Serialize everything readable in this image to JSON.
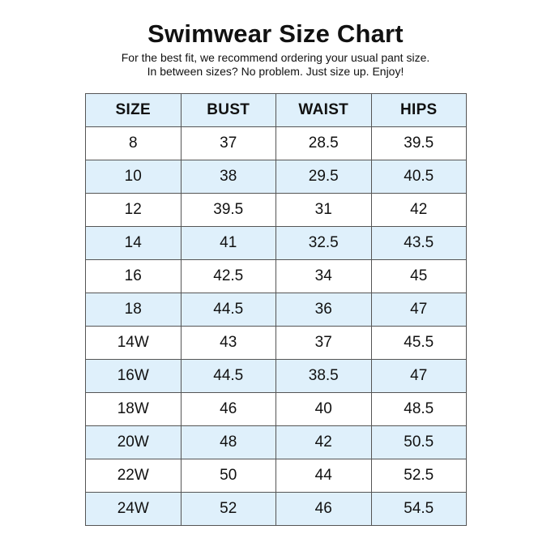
{
  "title": "Swimwear Size Chart",
  "subtitle": {
    "line1": "For the best fit, we recommend ordering your usual pant size.",
    "line2": "In between sizes? No problem. Just size up. Enjoy!"
  },
  "colors": {
    "shaded_row": "#dff0fb",
    "border": "#555555",
    "text": "#111111"
  },
  "table": {
    "headers": [
      "SIZE",
      "BUST",
      "WAIST",
      "HIPS"
    ],
    "rows": [
      [
        "8",
        "37",
        "28.5",
        "39.5"
      ],
      [
        "10",
        "38",
        "29.5",
        "40.5"
      ],
      [
        "12",
        "39.5",
        "31",
        "42"
      ],
      [
        "14",
        "41",
        "32.5",
        "43.5"
      ],
      [
        "16",
        "42.5",
        "34",
        "45"
      ],
      [
        "18",
        "44.5",
        "36",
        "47"
      ],
      [
        "14W",
        "43",
        "37",
        "45.5"
      ],
      [
        "16W",
        "44.5",
        "38.5",
        "47"
      ],
      [
        "18W",
        "46",
        "40",
        "48.5"
      ],
      [
        "20W",
        "48",
        "42",
        "50.5"
      ],
      [
        "22W",
        "50",
        "44",
        "52.5"
      ],
      [
        "24W",
        "52",
        "46",
        "54.5"
      ]
    ]
  }
}
